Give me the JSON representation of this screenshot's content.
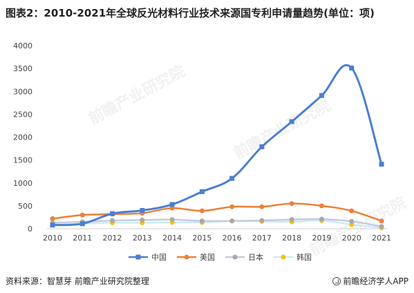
{
  "title": "图表2：2010-2021年全球反光材料行业技术来源国专利申请量趋势(单位：项)",
  "source": "资料来源：智慧芽 前瞻产业研究院整理",
  "brand": "前瞻经济学人APP",
  "watermark": "前瞻产业研究院",
  "chart_data": {
    "type": "line",
    "x": [
      "2010",
      "2011",
      "2012",
      "2013",
      "2014",
      "2015",
      "2016",
      "2017",
      "2018",
      "2019",
      "2020",
      "2021"
    ],
    "ylim": [
      0,
      4000
    ],
    "yticks": [
      0,
      500,
      1000,
      1500,
      2000,
      2500,
      3000,
      3500,
      4000
    ],
    "grid": false,
    "legend": "bottom",
    "smooth": true,
    "series": [
      {
        "name": "中国",
        "color": "#4a7fd1",
        "marker": "square",
        "values": [
          80,
          110,
          330,
          400,
          530,
          810,
          1100,
          1790,
          2340,
          2910,
          3510,
          1410
        ]
      },
      {
        "name": "美国",
        "color": "#f07f36",
        "marker": "circle",
        "values": [
          220,
          300,
          320,
          340,
          450,
          390,
          480,
          480,
          550,
          500,
          390,
          170
        ]
      },
      {
        "name": "日本",
        "color": "#a9a9a9",
        "marker": "circle",
        "values": [
          130,
          150,
          180,
          190,
          200,
          170,
          170,
          180,
          200,
          210,
          160,
          50
        ]
      },
      {
        "name": "韩国",
        "color": "#ffc000",
        "marker": "circle",
        "values": [
          90,
          110,
          130,
          130,
          140,
          140,
          170,
          160,
          150,
          180,
          90,
          20
        ]
      }
    ]
  }
}
